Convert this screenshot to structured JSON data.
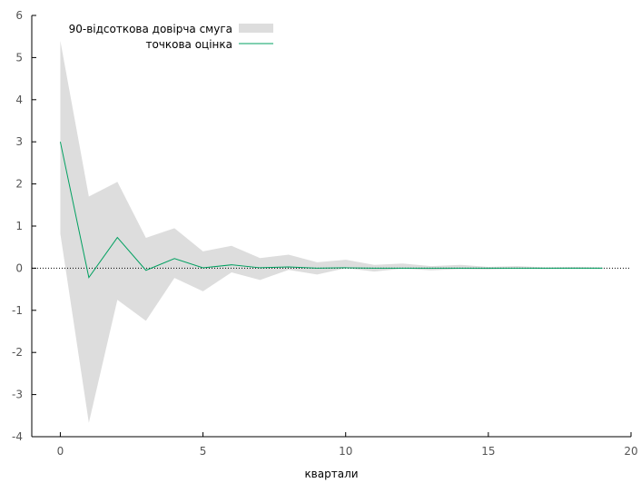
{
  "chart_data": {
    "type": "area",
    "title": "",
    "xlabel": "квартали",
    "ylabel": "",
    "xlim": [
      -1,
      20
    ],
    "ylim": [
      -4,
      6
    ],
    "xticks": [
      0,
      5,
      10,
      15,
      20
    ],
    "yticks": [
      -4,
      -3,
      -2,
      -1,
      0,
      1,
      2,
      3,
      4,
      5,
      6
    ],
    "grid": false,
    "legend_position": "top-left",
    "x": [
      0,
      1,
      2,
      3,
      4,
      5,
      6,
      7,
      8,
      9,
      10,
      11,
      12,
      13,
      14,
      15,
      16,
      17,
      18,
      19
    ],
    "series": [
      {
        "name": "90-відсоткова довірча смуга",
        "kind": "band",
        "color": "#dddddd",
        "upper": [
          5.4,
          1.7,
          2.05,
          0.72,
          0.95,
          0.4,
          0.53,
          0.24,
          0.32,
          0.14,
          0.2,
          0.08,
          0.11,
          0.05,
          0.08,
          0.03,
          0.05,
          0.02,
          0.03,
          0.02
        ],
        "lower": [
          0.82,
          -3.67,
          -0.75,
          -1.25,
          -0.23,
          -0.55,
          -0.1,
          -0.28,
          -0.04,
          -0.15,
          0.0,
          -0.08,
          -0.01,
          -0.05,
          -0.02,
          -0.03,
          -0.01,
          -0.02,
          -0.01,
          -0.01
        ]
      },
      {
        "name": "точкова оцінка",
        "kind": "line",
        "color": "#00a060",
        "values": [
          3.0,
          -0.22,
          0.73,
          -0.05,
          0.23,
          0.01,
          0.08,
          0.01,
          0.03,
          0.0,
          0.01,
          0.0,
          0.0,
          0.0,
          0.0,
          0.0,
          0.0,
          0.0,
          0.0,
          0.0
        ]
      }
    ],
    "zero_line": {
      "value": 0,
      "color": "#000000",
      "style": "dotted"
    }
  }
}
